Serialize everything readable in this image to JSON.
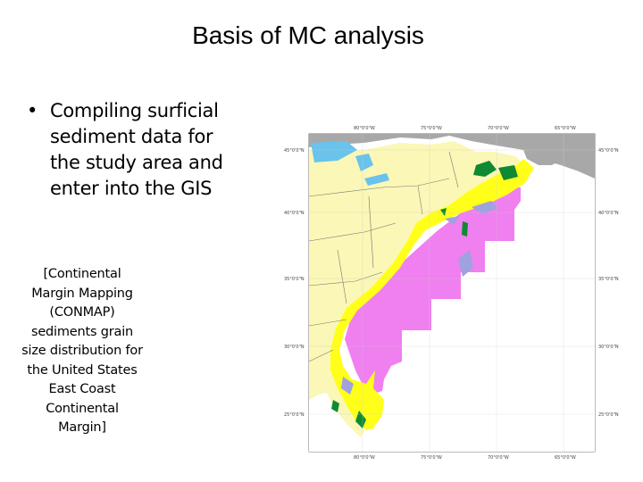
{
  "slide": {
    "title": "Basis of MC analysis",
    "bullet_marker": "•",
    "bullet": "Compiling surficial sediment data for the study area and enter into the GIS",
    "caption": "[Continental Margin Mapping (CONMAP) sediments grain size distribution for the United States East Coast Continental Margin]"
  },
  "map": {
    "top_ticks": [
      "80°0'0\"W",
      "75°0'0\"W",
      "70°0'0\"W",
      "65°0'0\"W"
    ],
    "bottom_ticks": [
      "80°0'0\"W",
      "75°0'0\"W",
      "70°0'0\"W",
      "65°0'0\"W"
    ],
    "left_ticks": [
      "45°0'0\"N",
      "40°0'0\"N",
      "35°0'0\"N",
      "30°0'0\"N",
      "25°0'0\"N"
    ],
    "right_ticks": [
      "45°0'0\"N",
      "40°0'0\"N",
      "35°0'0\"N",
      "30°0'0\"N",
      "25°0'0\"N"
    ],
    "colors": {
      "land_us": "#fbf7b6",
      "canada": "#a8a8a8",
      "lakes": "#69c3ec",
      "shelf": "#ffff19",
      "slope": "#f07ff0",
      "gravel": "#0f8a32",
      "mud": "#9fa2de",
      "border": "#777777"
    }
  }
}
